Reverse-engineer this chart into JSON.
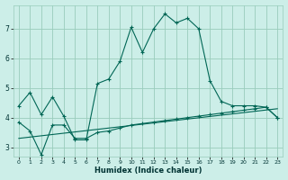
{
  "xlabel": "Humidex (Indice chaleur)",
  "bg_color": "#cceee8",
  "grid_color": "#99ccbb",
  "line_color": "#006655",
  "xlim": [
    -0.5,
    23.5
  ],
  "ylim": [
    2.7,
    7.8
  ],
  "xticks": [
    0,
    1,
    2,
    3,
    4,
    5,
    6,
    7,
    8,
    9,
    10,
    11,
    12,
    13,
    14,
    15,
    16,
    17,
    18,
    19,
    20,
    21,
    22,
    23
  ],
  "yticks": [
    3,
    4,
    5,
    6,
    7
  ],
  "main_x": [
    0,
    1,
    2,
    3,
    4,
    5,
    6,
    7,
    8,
    9,
    10,
    11,
    12,
    13,
    14,
    15,
    16,
    17,
    18,
    19,
    20,
    21,
    22,
    23
  ],
  "main_y": [
    4.4,
    4.85,
    4.1,
    4.7,
    4.05,
    3.25,
    3.25,
    5.15,
    5.3,
    5.9,
    7.05,
    6.2,
    7.0,
    7.5,
    7.2,
    7.35,
    7.0,
    5.25,
    4.55,
    4.4,
    4.4,
    4.4,
    4.35,
    4.0
  ],
  "line2_x": [
    0,
    1,
    2,
    3,
    4,
    5,
    6,
    7,
    8,
    9,
    10,
    11,
    12,
    13,
    14,
    15,
    16,
    17,
    18,
    19,
    20,
    21,
    22,
    23
  ],
  "line2_y": [
    3.85,
    3.55,
    2.75,
    3.75,
    3.75,
    3.3,
    3.3,
    3.5,
    3.55,
    3.65,
    3.75,
    3.8,
    3.85,
    3.9,
    3.95,
    4.0,
    4.05,
    4.1,
    4.15,
    4.2,
    4.25,
    4.3,
    4.35,
    4.0
  ],
  "line3_x": [
    0,
    23
  ],
  "line3_y": [
    3.3,
    4.3
  ]
}
